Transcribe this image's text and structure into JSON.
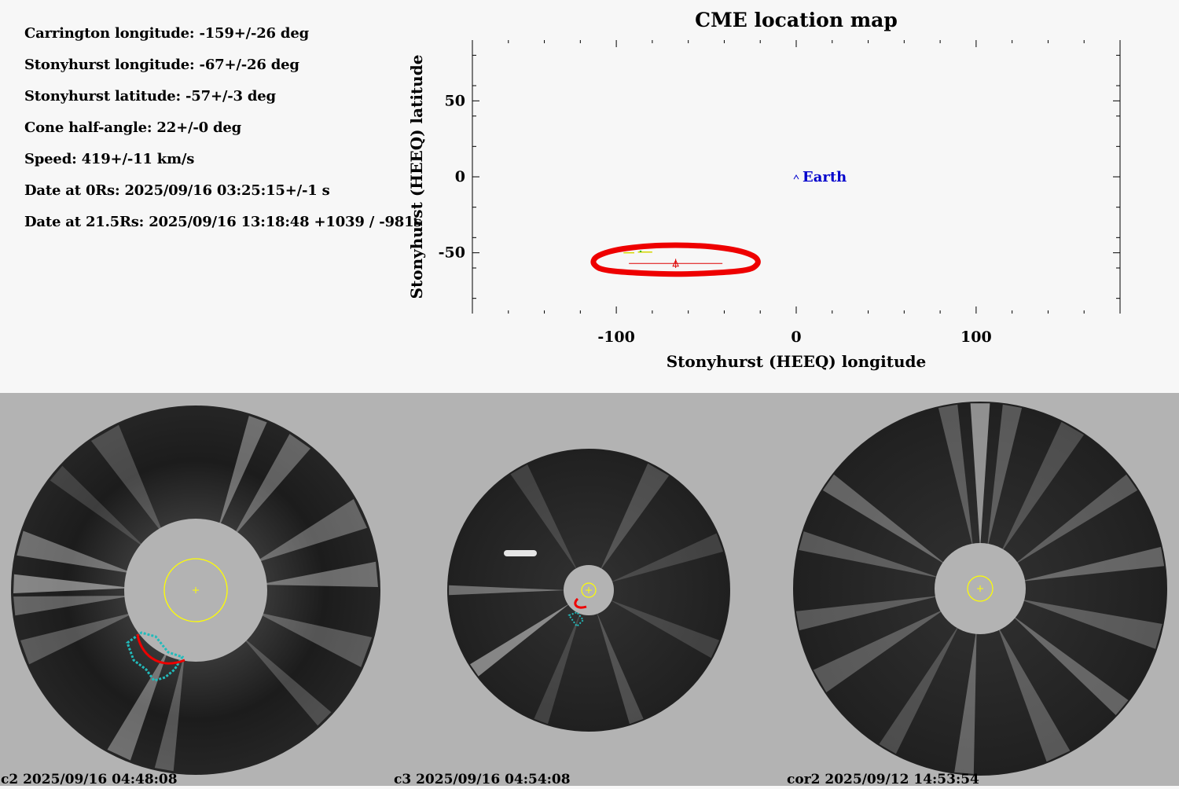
{
  "params": {
    "lines": [
      "Carrington longitude: -159+/-26 deg",
      "Stonyhurst longitude: -67+/-26 deg",
      "Stonyhurst latitude: -57+/-3 deg",
      "Cone half-angle: 22+/-0 deg",
      "Speed: 419+/-11 km/s",
      "Date at 0Rs: 2025/09/16 03:25:15+/-1 s",
      "Date at 21.5Rs: 2025/09/16 13:18:48 +1039 / -981s"
    ]
  },
  "chart_data": {
    "type": "scatter",
    "title": "CME location map",
    "xlabel": "Stonyhurst (HEEQ) longitude",
    "ylabel": "Stonyhurst (HEEQ) latitude",
    "xlim": [
      -180,
      180
    ],
    "ylim": [
      -90,
      90
    ],
    "xticks": [
      -100,
      0,
      100
    ],
    "xtick_labels": [
      "-100",
      "0",
      "100"
    ],
    "yticks": [
      50,
      0,
      -50
    ],
    "ytick_labels": [
      "50",
      "0",
      "-50"
    ],
    "earth": {
      "label": "Earth",
      "lon": 0,
      "lat": 0,
      "color": "#0000cc"
    },
    "cme": {
      "lon": -67,
      "lat": -57,
      "lon_err": 26,
      "lat_err": 3,
      "color": "#dd0000"
    },
    "cone_outline": {
      "color": "#ee0000",
      "points": [
        [
          -67,
          -45
        ],
        [
          -40,
          -47
        ],
        [
          -24,
          -52
        ],
        [
          -22,
          -58
        ],
        [
          -32,
          -62
        ],
        [
          -67,
          -64
        ],
        [
          -102,
          -62
        ],
        [
          -112,
          -58
        ],
        [
          -110,
          -52
        ],
        [
          -94,
          -47
        ]
      ]
    },
    "small_segments": [
      {
        "x": [
          -96,
          -90
        ],
        "lat": -50,
        "color": "#d6d600"
      },
      {
        "x": [
          -88,
          -80
        ],
        "lat": -49.5,
        "color": "#d6d600"
      },
      {
        "x": [
          -87,
          -86
        ],
        "lat": -49,
        "color": "#00b000"
      }
    ]
  },
  "images": [
    {
      "caption": "c2 2025/09/16 04:48:08"
    },
    {
      "caption": "c3 2025/09/16 04:54:08"
    },
    {
      "caption": "cor2 2025/09/12 14:53:54"
    }
  ]
}
